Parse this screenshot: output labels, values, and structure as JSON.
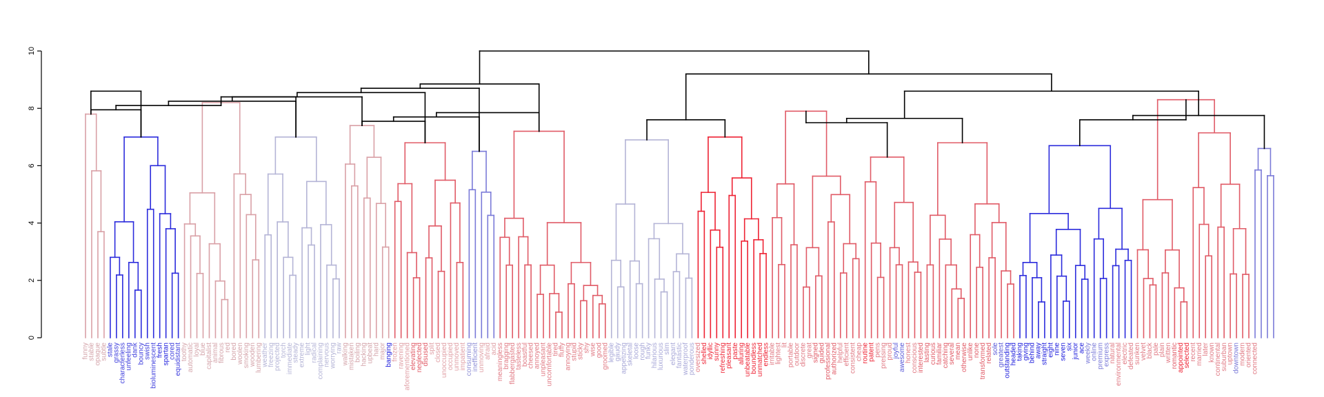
{
  "chart_data": {
    "type": "dendrogram",
    "ylim": [
      0,
      10
    ],
    "yticks": [
      "0",
      "2",
      "4",
      "6",
      "8",
      "10"
    ],
    "grid": false,
    "colors": {
      "black": "#000000",
      "pink": "#d9a0a6",
      "blue": "#2b2bdc",
      "lavender": "#b4b4d6",
      "red": "#e05a66",
      "brightred": "#ee2233",
      "lightblue": "#7a7ad8"
    },
    "leaves": [
      {
        "label": "funny",
        "color": "#d4a4aa"
      },
      {
        "label": "stable",
        "color": "#d4a4aa"
      },
      {
        "label": "opaque",
        "color": "#d4a4aa"
      },
      {
        "label": "subtle",
        "color": "#d4a4aa"
      },
      {
        "label": "stale",
        "color": "#4040dd"
      },
      {
        "label": "grassy",
        "color": "#4040dd"
      },
      {
        "label": "characterless",
        "color": "#4040dd"
      },
      {
        "label": "unfeeling",
        "color": "#4040dd"
      },
      {
        "label": "dank",
        "color": "#4040dd"
      },
      {
        "label": "bouncy",
        "color": "#4040dd"
      },
      {
        "label": "swish",
        "color": "#4040dd"
      },
      {
        "label": "bioluminescent",
        "color": "#4040dd"
      },
      {
        "label": "fresh",
        "color": "#2020dd"
      },
      {
        "label": "spartan",
        "color": "#2020dd"
      },
      {
        "label": "cored",
        "color": "#4040dd"
      },
      {
        "label": "equidistant",
        "color": "#4040dd"
      },
      {
        "label": "toothy",
        "color": "#d4a4aa"
      },
      {
        "label": "automatic",
        "color": "#d4a4aa"
      },
      {
        "label": "loyal",
        "color": "#d4a4aa"
      },
      {
        "label": "blue",
        "color": "#d4a4aa"
      },
      {
        "label": "capitalist",
        "color": "#d4a4aa"
      },
      {
        "label": "animal",
        "color": "#d4a4aa"
      },
      {
        "label": "fibrous",
        "color": "#d4a4aa"
      },
      {
        "label": "red",
        "color": "#d4a4aa"
      },
      {
        "label": "bored",
        "color": "#d4a4aa"
      },
      {
        "label": "woolen",
        "color": "#d4a4aa"
      },
      {
        "label": "smoking",
        "color": "#d4a4aa"
      },
      {
        "label": "wooden",
        "color": "#d4a4aa"
      },
      {
        "label": "lumbering",
        "color": "#d4a4aa"
      },
      {
        "label": "weather",
        "color": "#b4b4d6"
      },
      {
        "label": "freezing",
        "color": "#b4b4d6"
      },
      {
        "label": "projected",
        "color": "#b4b4d6"
      },
      {
        "label": "torch",
        "color": "#b4b4d6"
      },
      {
        "label": "immediate",
        "color": "#b4b4d6"
      },
      {
        "label": "steady",
        "color": "#b4b4d6"
      },
      {
        "label": "extreme",
        "color": "#b4b4d6"
      },
      {
        "label": "light",
        "color": "#b4b4d6"
      },
      {
        "label": "radical",
        "color": "#b4b4d6"
      },
      {
        "label": "complaining",
        "color": "#b4b4d6"
      },
      {
        "label": "nervous",
        "color": "#b4b4d6"
      },
      {
        "label": "worrying",
        "color": "#b4b4d6"
      },
      {
        "label": "raw",
        "color": "#b4b4d6"
      },
      {
        "label": "walking",
        "color": "#d4a4aa"
      },
      {
        "label": "mistaken",
        "color": "#d4a4aa"
      },
      {
        "label": "boiling",
        "color": "#d4a4aa"
      },
      {
        "label": "hacking",
        "color": "#d4a4aa"
      },
      {
        "label": "upbeat",
        "color": "#d4a4aa"
      },
      {
        "label": "hard",
        "color": "#d4a4aa"
      },
      {
        "label": "major",
        "color": "#d4a4aa"
      },
      {
        "label": "banging",
        "color": "#2020dd"
      },
      {
        "label": "frozen",
        "color": "#e0a0a6"
      },
      {
        "label": "ravening",
        "color": "#e0a0a6"
      },
      {
        "label": "aforementioned",
        "color": "#e0a0a6"
      },
      {
        "label": "elevating",
        "color": "#e05a66"
      },
      {
        "label": "neglected",
        "color": "#e05a66"
      },
      {
        "label": "disused",
        "color": "#e05a66"
      },
      {
        "label": "split",
        "color": "#e0a0a6"
      },
      {
        "label": "closed",
        "color": "#e0a0a6"
      },
      {
        "label": "unoccupied",
        "color": "#e0a0a6"
      },
      {
        "label": "occupied",
        "color": "#e0a0a6"
      },
      {
        "label": "unmoved",
        "color": "#e0a0a6"
      },
      {
        "label": "impatient",
        "color": "#e0a0a6"
      },
      {
        "label": "consuming",
        "color": "#9090d6"
      },
      {
        "label": "inefficient",
        "color": "#9090d6"
      },
      {
        "label": "unmoving",
        "color": "#e0a0a6"
      },
      {
        "label": "afraid",
        "color": "#e0a0a6"
      },
      {
        "label": "acid",
        "color": "#e0a0a6"
      },
      {
        "label": "meaningless",
        "color": "#e07a84"
      },
      {
        "label": "bragging",
        "color": "#e07a84"
      },
      {
        "label": "flabbergasted",
        "color": "#e07a84"
      },
      {
        "label": "tasteless",
        "color": "#e07a84"
      },
      {
        "label": "boastful",
        "color": "#e07a84"
      },
      {
        "label": "cheesed",
        "color": "#e07a84"
      },
      {
        "label": "annoyed",
        "color": "#e07a84"
      },
      {
        "label": "unpleasant",
        "color": "#e07a84"
      },
      {
        "label": "uncomfortable",
        "color": "#e07a84"
      },
      {
        "label": "tired",
        "color": "#e07a84"
      },
      {
        "label": "fluffy",
        "color": "#e07a84"
      },
      {
        "label": "annoying",
        "color": "#e07a84"
      },
      {
        "label": "stupid",
        "color": "#e07a84"
      },
      {
        "label": "sticky",
        "color": "#e07a84"
      },
      {
        "label": "shy",
        "color": "#e07a84"
      },
      {
        "label": "wise",
        "color": "#e07a84"
      },
      {
        "label": "good",
        "color": "#e07a84"
      },
      {
        "label": "groomed",
        "color": "#e07a84"
      },
      {
        "label": "legible",
        "color": "#a8a8d8"
      },
      {
        "label": "gaudy",
        "color": "#a8a8d8"
      },
      {
        "label": "appetizing",
        "color": "#a8a8d8"
      },
      {
        "label": "skeletal",
        "color": "#a8a8d8"
      },
      {
        "label": "loose",
        "color": "#a8a8d8"
      },
      {
        "label": "rough",
        "color": "#a8a8d8"
      },
      {
        "label": "funky",
        "color": "#a8a8d8"
      },
      {
        "label": "hilarious",
        "color": "#a8a8d8"
      },
      {
        "label": "luxurious",
        "color": "#a8a8d8"
      },
      {
        "label": "slim",
        "color": "#a8a8d8"
      },
      {
        "label": "elegant",
        "color": "#a8a8d8"
      },
      {
        "label": "fantastic",
        "color": "#a8a8d8"
      },
      {
        "label": "waterproof",
        "color": "#a8a8d8"
      },
      {
        "label": "ponderous",
        "color": "#a8a8d8"
      },
      {
        "label": "oversized",
        "color": "#e07a84"
      },
      {
        "label": "shelled",
        "color": "#ee2233"
      },
      {
        "label": "idyllic",
        "color": "#ee2233"
      },
      {
        "label": "sunny",
        "color": "#ee2233"
      },
      {
        "label": "refreshing",
        "color": "#ee2233"
      },
      {
        "label": "pleasant",
        "color": "#ee2233"
      },
      {
        "label": "paste",
        "color": "#ee2233"
      },
      {
        "label": "alluring",
        "color": "#ee2233"
      },
      {
        "label": "unbeatable",
        "color": "#ee2233"
      },
      {
        "label": "boundless",
        "color": "#ee2233"
      },
      {
        "label": "unmatched",
        "color": "#ee2233"
      },
      {
        "label": "endless",
        "color": "#ee2233"
      },
      {
        "label": "irritable",
        "color": "#e07a84"
      },
      {
        "label": "lightest",
        "color": "#e07a84"
      },
      {
        "label": "lit",
        "color": "#e07a84"
      },
      {
        "label": "portable",
        "color": "#e07a84"
      },
      {
        "label": "outdoor",
        "color": "#e07a84"
      },
      {
        "label": "discrete",
        "color": "#e07a84"
      },
      {
        "label": "great",
        "color": "#e07a84"
      },
      {
        "label": "signed",
        "color": "#e05a66"
      },
      {
        "label": "guided",
        "color": "#e05a66"
      },
      {
        "label": "professional",
        "color": "#e05a66"
      },
      {
        "label": "authorized",
        "color": "#e05a66"
      },
      {
        "label": "helpful",
        "color": "#e07a84"
      },
      {
        "label": "efficient",
        "color": "#e07a84"
      },
      {
        "label": "consistent",
        "color": "#e07a84"
      },
      {
        "label": "cheap",
        "color": "#e07a84"
      },
      {
        "label": "routine",
        "color": "#ee2233"
      },
      {
        "label": "patent",
        "color": "#ee2233"
      },
      {
        "label": "pens",
        "color": "#e07a84"
      },
      {
        "label": "pressing",
        "color": "#e07a84"
      },
      {
        "label": "proud",
        "color": "#e07a84"
      },
      {
        "label": "joyful",
        "color": "#5a5ad8"
      },
      {
        "label": "awesome",
        "color": "#5a5ad8"
      },
      {
        "label": "honest",
        "color": "#e07a84"
      },
      {
        "label": "conscious",
        "color": "#e07a84"
      },
      {
        "label": "interested",
        "color": "#e05a66"
      },
      {
        "label": "lasting",
        "color": "#e05a66"
      },
      {
        "label": "curious",
        "color": "#e05a66"
      },
      {
        "label": "familiar",
        "color": "#e05a66"
      },
      {
        "label": "catching",
        "color": "#e05a66"
      },
      {
        "label": "several",
        "color": "#e05a66"
      },
      {
        "label": "mean",
        "color": "#e05a66"
      },
      {
        "label": "otherwise",
        "color": "#e05a66"
      },
      {
        "label": "unlike",
        "color": "#e05a66"
      },
      {
        "label": "none",
        "color": "#e05a66"
      },
      {
        "label": "transformed",
        "color": "#e05a66"
      },
      {
        "label": "related",
        "color": "#e05a66"
      },
      {
        "label": "sole",
        "color": "#5a5ad8"
      },
      {
        "label": "greatest",
        "color": "#5a5ad8"
      },
      {
        "label": "outstanding",
        "color": "#2020dd"
      },
      {
        "label": "headed",
        "color": "#2020dd"
      },
      {
        "label": "taking",
        "color": "#2020dd"
      },
      {
        "label": "giving",
        "color": "#2020dd"
      },
      {
        "label": "behind",
        "color": "#2020dd"
      },
      {
        "label": "away",
        "color": "#2020dd"
      },
      {
        "label": "straight",
        "color": "#2020dd"
      },
      {
        "label": "eight",
        "color": "#2020dd"
      },
      {
        "label": "nine",
        "color": "#2020dd"
      },
      {
        "label": "seven",
        "color": "#2020dd"
      },
      {
        "label": "six",
        "color": "#2020dd"
      },
      {
        "label": "junior",
        "color": "#2020dd"
      },
      {
        "label": "ace",
        "color": "#2020dd"
      },
      {
        "label": "weekly",
        "color": "#7a7ad8"
      },
      {
        "label": "online",
        "color": "#7a7ad8"
      },
      {
        "label": "premium",
        "color": "#7a7ad8"
      },
      {
        "label": "express",
        "color": "#7a7ad8"
      },
      {
        "label": "natural",
        "color": "#e07a84"
      },
      {
        "label": "environmental",
        "color": "#e07a84"
      },
      {
        "label": "electric",
        "color": "#e07a84"
      },
      {
        "label": "defeated",
        "color": "#e07a84"
      },
      {
        "label": "sunken",
        "color": "#e07a84"
      },
      {
        "label": "velvet",
        "color": "#e07a84"
      },
      {
        "label": "black",
        "color": "#e07a84"
      },
      {
        "label": "pale",
        "color": "#e07a84"
      },
      {
        "label": "plain",
        "color": "#e07a84"
      },
      {
        "label": "written",
        "color": "#e07a84"
      },
      {
        "label": "romantic",
        "color": "#e05a66"
      },
      {
        "label": "appointed",
        "color": "#ee2233"
      },
      {
        "label": "selected",
        "color": "#ee2233"
      },
      {
        "label": "recent",
        "color": "#e07a84"
      },
      {
        "label": "married",
        "color": "#e07a84"
      },
      {
        "label": "later",
        "color": "#e07a84"
      },
      {
        "label": "known",
        "color": "#e07a84"
      },
      {
        "label": "continental",
        "color": "#e07a84"
      },
      {
        "label": "suburban",
        "color": "#e07a84"
      },
      {
        "label": "uptown",
        "color": "#e07a84"
      },
      {
        "label": "downtown",
        "color": "#7a7ad8"
      },
      {
        "label": "modern",
        "color": "#e07a84"
      },
      {
        "label": "oriented",
        "color": "#e07a84"
      },
      {
        "label": "connected",
        "color": "#e07a84"
      }
    ]
  }
}
